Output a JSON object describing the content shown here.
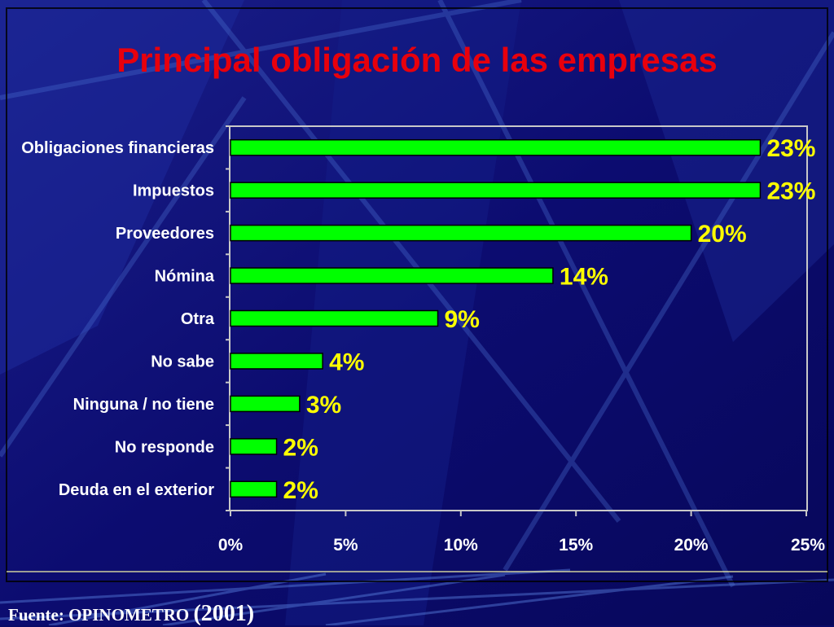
{
  "chart_data": {
    "type": "bar",
    "orientation": "horizontal",
    "title": "Principal obligación de las empresas",
    "categories": [
      "Obligaciones financieras",
      "Impuestos",
      "Proveedores",
      "Nómina",
      "Otra",
      "No sabe",
      "Ninguna / no tiene",
      "No responde",
      "Deuda en el exterior"
    ],
    "values": [
      23,
      23,
      20,
      14,
      9,
      4,
      3,
      2,
      2
    ],
    "data_labels": [
      "23%",
      "23%",
      "20%",
      "14%",
      "9%",
      "4%",
      "3%",
      "2%",
      "2%"
    ],
    "x_ticks": [
      "0%",
      "5%",
      "10%",
      "15%",
      "20%",
      "25%"
    ],
    "xlim": [
      0,
      25
    ],
    "grid": false,
    "colors": {
      "bar": "#00ff00",
      "label": "#ffff00",
      "title": "#e8000c",
      "axis_text": "#ffffff"
    }
  },
  "footer": {
    "source_label": "Fuente: OPINOMETRO",
    "source_year": "(2001)"
  }
}
